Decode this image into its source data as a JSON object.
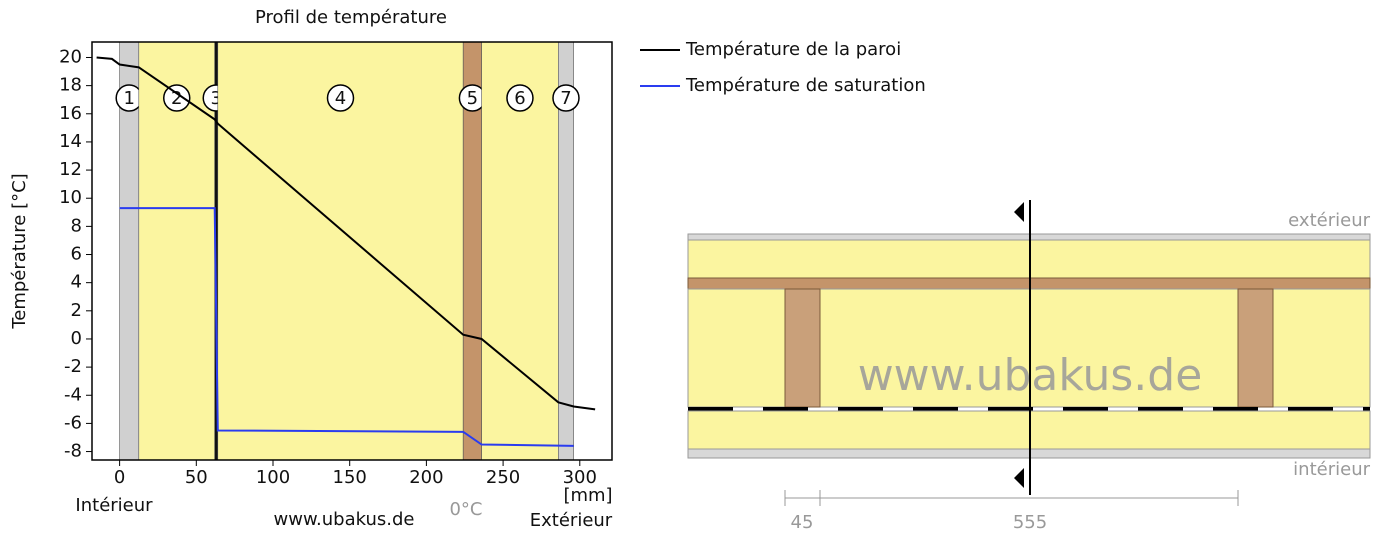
{
  "chart_data": {
    "type": "line",
    "title": "Profil de température",
    "ylabel": "Température [°C]",
    "xlabel": "[mm]",
    "xlim": [
      -18,
      321
    ],
    "ylim": [
      -8.6,
      21.1
    ],
    "xticks": [
      0,
      50,
      100,
      150,
      200,
      250,
      300
    ],
    "yticks": [
      -8,
      -6,
      -4,
      -2,
      0,
      2,
      4,
      6,
      8,
      10,
      12,
      14,
      16,
      18,
      20
    ],
    "layers": [
      {
        "label": "1",
        "x": [
          0,
          12.5
        ],
        "color": "#d0d0d0"
      },
      {
        "label": "2",
        "x": [
          12.5,
          62
        ],
        "color": "#fbf5a0"
      },
      {
        "label": "3",
        "x": [
          62,
          64
        ],
        "color": "#111111"
      },
      {
        "label": "4",
        "x": [
          64,
          224
        ],
        "color": "#fbf5a0"
      },
      {
        "label": "5",
        "x": [
          224,
          236
        ],
        "color": "#c4946a"
      },
      {
        "label": "6",
        "x": [
          236,
          286
        ],
        "color": "#fbf5a0"
      },
      {
        "label": "7",
        "x": [
          286,
          296
        ],
        "color": "#d0d0d0"
      }
    ],
    "series": [
      {
        "name": "Température de la paroi",
        "color": "#000000",
        "x": [
          -15,
          -5,
          0,
          12.5,
          62,
          64,
          224,
          236,
          286,
          296,
          310
        ],
        "values": [
          20,
          19.9,
          19.5,
          19.3,
          15.6,
          15.3,
          0.3,
          0,
          -4.5,
          -4.8,
          -5
        ]
      },
      {
        "name": "Température de saturation",
        "color": "#2a3cf0",
        "x": [
          0,
          62,
          64,
          224,
          236,
          296
        ],
        "values": [
          9.3,
          9.3,
          -6.5,
          -6.6,
          -7.5,
          -7.6
        ]
      }
    ],
    "left_label": "Intérieur",
    "right_label": "Extérieur",
    "watermark": "www.ubakus.de",
    "zero_label": "0°C"
  },
  "diagram": {
    "top_label": "extérieur",
    "bottom_label": "intérieur",
    "watermark": "www.ubakus.de",
    "dimensions": [
      "45",
      "555"
    ]
  }
}
